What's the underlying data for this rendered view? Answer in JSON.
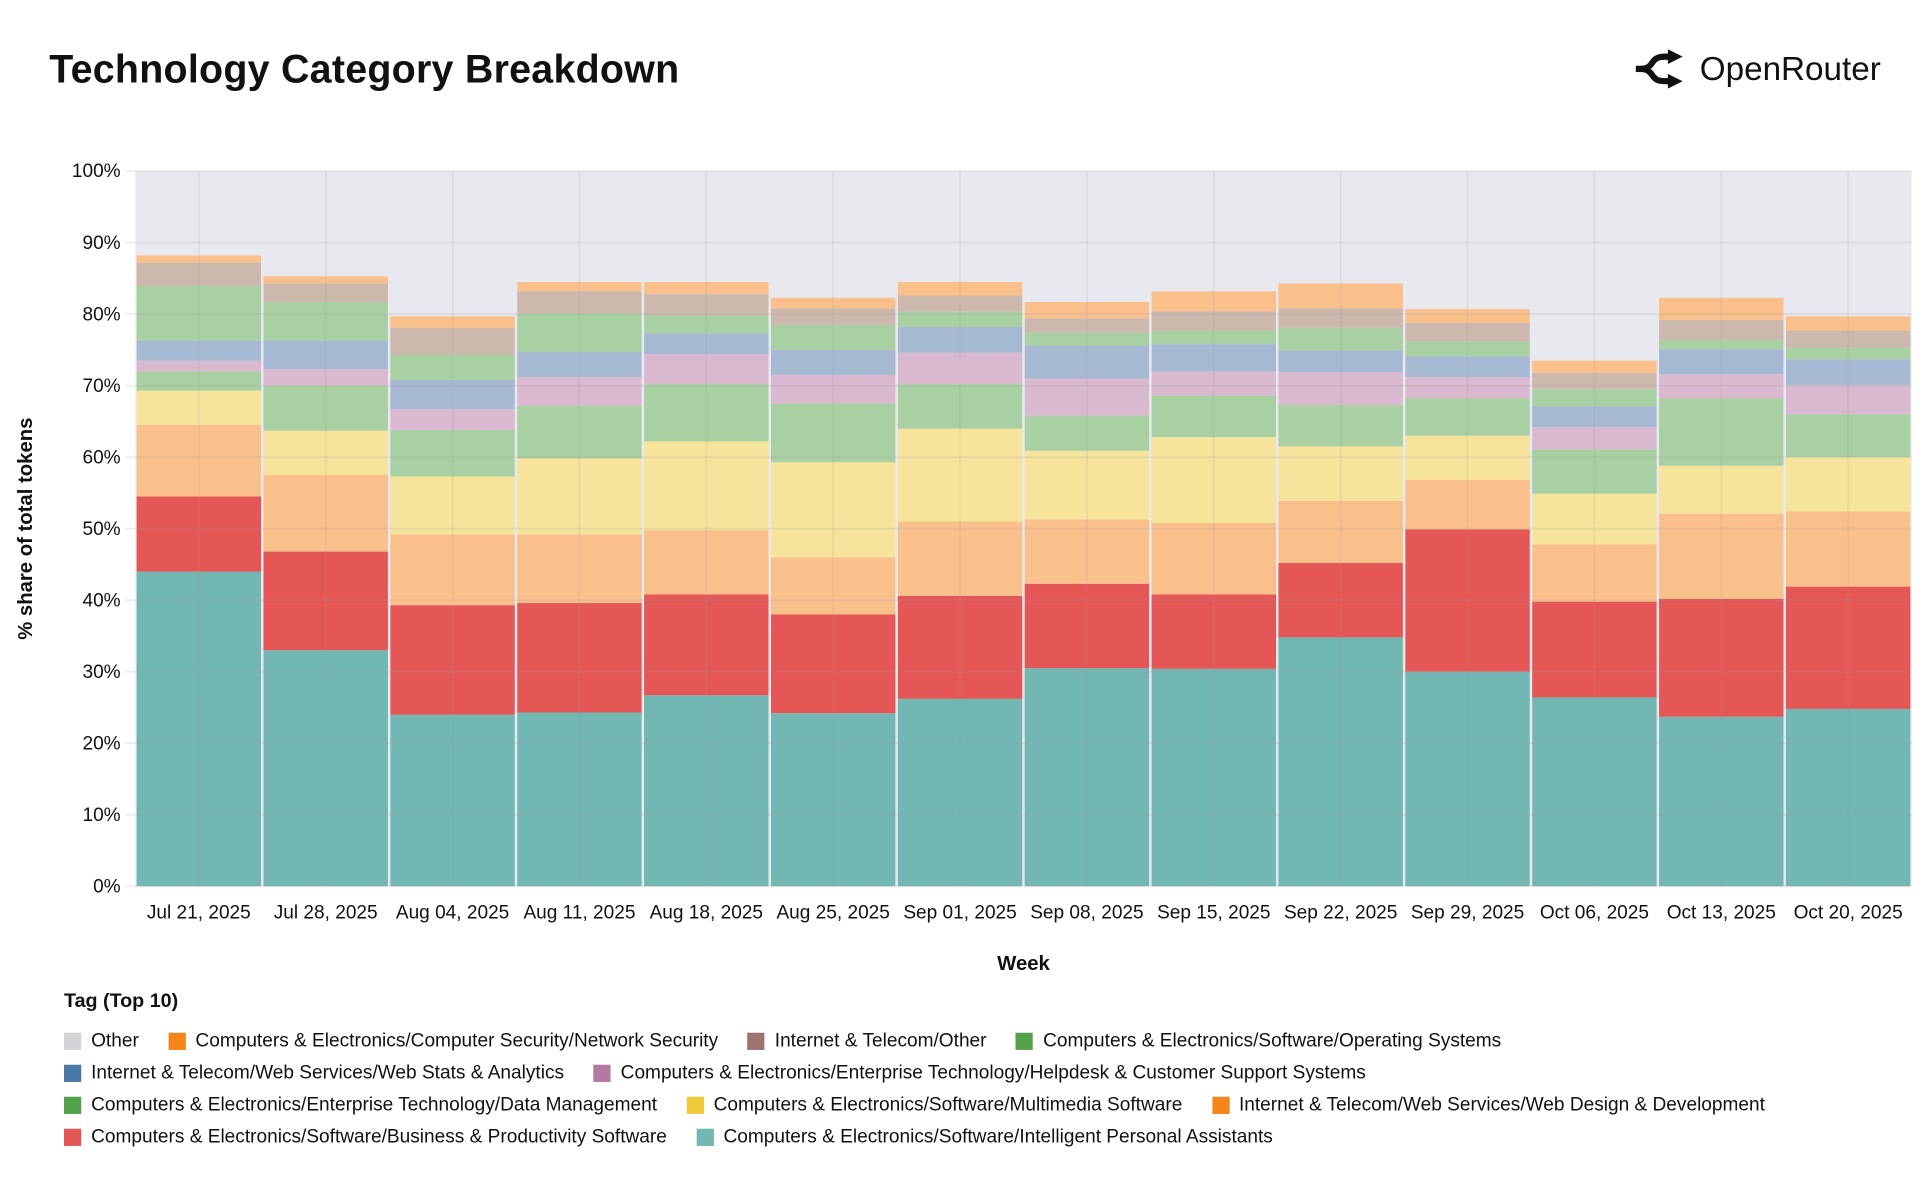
{
  "header": {
    "title": "Technology Category Breakdown",
    "brand": "OpenRouter",
    "brand_icon": "openrouter-logo-icon"
  },
  "chart_data": {
    "type": "bar",
    "stacked": true,
    "title": "Technology Category Breakdown",
    "xlabel": "Week",
    "ylabel": "% share of total tokens",
    "ylim": [
      0,
      100
    ],
    "yticks": [
      "0%",
      "10%",
      "20%",
      "30%",
      "40%",
      "50%",
      "60%",
      "70%",
      "80%",
      "90%",
      "100%"
    ],
    "grid": true,
    "legend_title": "Tag (Top 10)",
    "legend_placement": "bottom",
    "categories": [
      "Jul 21, 2025",
      "Jul 28, 2025",
      "Aug 04, 2025",
      "Aug 11, 2025",
      "Aug 18, 2025",
      "Aug 25, 2025",
      "Sep 01, 2025",
      "Sep 08, 2025",
      "Sep 15, 2025",
      "Sep 22, 2025",
      "Sep 29, 2025",
      "Oct 06, 2025",
      "Oct 13, 2025",
      "Oct 20, 2025"
    ],
    "series": [
      {
        "name": "Computers & Electronics/Software/Intelligent Personal Assistants",
        "color": "#72b7b2",
        "fill": "#72b7b2",
        "values": [
          44,
          33,
          24,
          24.3,
          26.7,
          24.2,
          26.2,
          30.5,
          30.4,
          34.8,
          30,
          26.4,
          23.7,
          24.8
        ]
      },
      {
        "name": "Computers & Electronics/Software/Business & Productivity Software",
        "color": "#e45756",
        "fill": "#e45756",
        "values": [
          10.5,
          13.8,
          15.3,
          15.3,
          14.1,
          13.8,
          14.4,
          11.8,
          10.4,
          10.4,
          19.9,
          13.4,
          16.5,
          17.1
        ]
      },
      {
        "name": "Internet & Telecom/Web Services/Web Design & Development",
        "color": "#f58518",
        "fill": "#f9c08b",
        "values": [
          10,
          10.7,
          9.9,
          9.6,
          9,
          8,
          10.4,
          9,
          10,
          8.7,
          6.9,
          8,
          11.9,
          10.5
        ]
      },
      {
        "name": "Computers & Electronics/Software/Multimedia Software",
        "color": "#eeca3b",
        "fill": "#f6e49c",
        "values": [
          4.8,
          6.2,
          8.1,
          10.6,
          12.4,
          13.3,
          13,
          9.6,
          12,
          7.6,
          6.2,
          7.1,
          6.7,
          7.6
        ]
      },
      {
        "name": "Computers & Electronics/Enterprise Technology/Data Management",
        "color": "#54a24b",
        "fill": "#a9d0a2",
        "values": [
          2.7,
          6.3,
          6.5,
          7.4,
          8,
          8.2,
          6.2,
          4.9,
          5.8,
          5.8,
          5.2,
          6.2,
          9.4,
          6
        ]
      },
      {
        "name": "Computers & Electronics/Enterprise Technology/Helpdesk & Customer Support Systems",
        "color": "#b279a2",
        "fill": "#d9b9d0",
        "values": [
          1.5,
          2.3,
          2.9,
          4,
          4.2,
          4,
          4.4,
          5.2,
          3.4,
          4.6,
          3,
          3.1,
          3.4,
          4.1
        ]
      },
      {
        "name": "Internet & Telecom/Web Services/Web Stats & Analytics",
        "color": "#4c78a8",
        "fill": "#a5bad2",
        "values": [
          2.8,
          4,
          4.1,
          3.5,
          2.9,
          3.5,
          3.6,
          4.6,
          3.8,
          3,
          2.9,
          2.9,
          3.5,
          3.6
        ]
      },
      {
        "name": "Computers & Electronics/Software/Operating Systems",
        "color": "#54a24b",
        "fill": "#a9d0a2",
        "values": [
          7.7,
          5.4,
          3.5,
          5.4,
          2.5,
          3.5,
          2.2,
          1.8,
          1.9,
          3.2,
          2.1,
          2.4,
          1.3,
          1.6
        ]
      },
      {
        "name": "Internet & Telecom/Other",
        "color": "#9d7570",
        "fill": "#cdb8ae",
        "values": [
          3.2,
          2.6,
          3.8,
          3.1,
          3,
          2.3,
          2.2,
          2,
          2.7,
          2.7,
          2.6,
          2.3,
          2.8,
          2.4
        ]
      },
      {
        "name": "Computers & Electronics/Computer Security/Network Security",
        "color": "#f58518",
        "fill": "#f9c08b",
        "values": [
          1,
          1,
          1.6,
          1.3,
          1.7,
          1.5,
          1.9,
          2.3,
          2.8,
          3.5,
          1.9,
          1.7,
          3.1,
          2
        ]
      },
      {
        "name": "Other",
        "color": "#d4d4d8",
        "fill": "#e8e9ee",
        "values": [
          11.8,
          14.7,
          20.3,
          15.5,
          15.5,
          17.7,
          15.5,
          18.3,
          16.8,
          15.7,
          19.3,
          26.5,
          17.7,
          20.3
        ]
      }
    ],
    "legend_rows": [
      [
        10,
        9,
        8,
        7
      ],
      [
        6,
        5
      ],
      [
        4,
        3,
        2
      ],
      [
        1,
        0
      ]
    ]
  }
}
